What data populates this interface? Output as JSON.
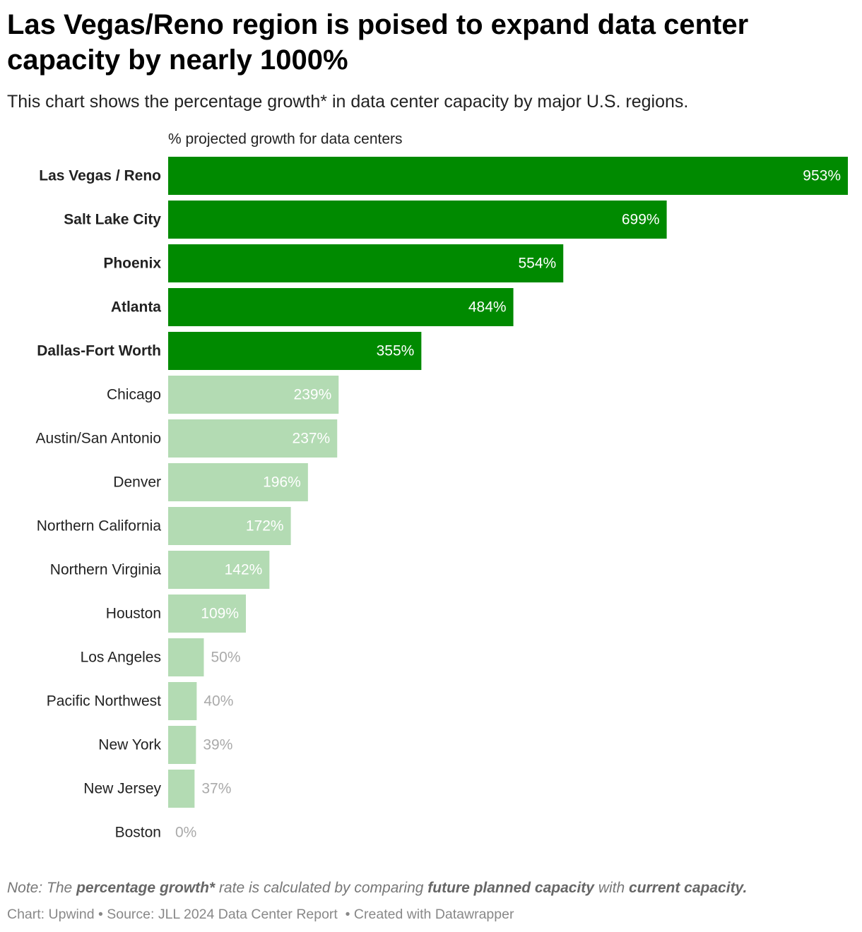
{
  "chart_data": {
    "type": "bar",
    "title": "Las Vegas/Reno region is poised to expand data center capacity by nearly 1000%",
    "subtitle": "This chart shows the percentage growth* in data center capacity by major U.S. regions.",
    "x_label": "% projected growth for data centers",
    "categories": [
      "Las Vegas / Reno",
      "Salt Lake City",
      "Phoenix",
      "Atlanta",
      "Dallas-Fort Worth",
      "Chicago",
      "Austin/San Antonio",
      "Denver",
      "Northern California",
      "Northern Virginia",
      "Houston",
      "Los Angeles",
      "Pacific Northwest",
      "New York",
      "New Jersey",
      "Boston"
    ],
    "values": [
      953,
      699,
      554,
      484,
      355,
      239,
      237,
      196,
      172,
      142,
      109,
      50,
      40,
      39,
      37,
      0
    ],
    "value_labels": [
      "953%",
      "699%",
      "554%",
      "484%",
      "355%",
      "239%",
      "237%",
      "196%",
      "172%",
      "142%",
      "109%",
      "50%",
      "40%",
      "39%",
      "37%",
      "0%"
    ],
    "colors": [
      "#008a00",
      "#008a00",
      "#008a00",
      "#008a00",
      "#008a00",
      "#b3dbb3",
      "#b3dbb3",
      "#b3dbb3",
      "#b3dbb3",
      "#b3dbb3",
      "#b3dbb3",
      "#b3dbb3",
      "#b3dbb3",
      "#b3dbb3",
      "#b3dbb3",
      "#b3dbb3"
    ],
    "bold_labels": [
      true,
      true,
      true,
      true,
      true,
      false,
      false,
      false,
      false,
      false,
      false,
      false,
      false,
      false,
      false,
      false
    ],
    "xlim": [
      0,
      953
    ],
    "note": [
      {
        "text": "Note: The "
      },
      {
        "text": "percentage growth*",
        "bold": true
      },
      {
        "text": " rate is calculated by comparing "
      },
      {
        "text": "future planned capacity",
        "bold": true
      },
      {
        "text": " with "
      },
      {
        "text": "current capacity.",
        "bold": true
      }
    ],
    "footer": "Chart: Upwind • Source: JLL 2024 Data Center Report  • Created with Datawrapper"
  }
}
